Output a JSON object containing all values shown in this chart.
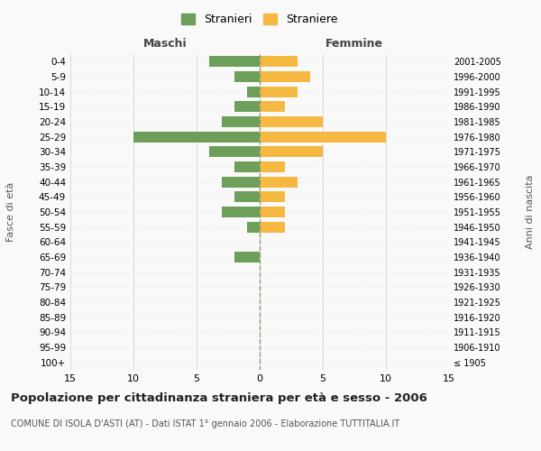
{
  "age_groups": [
    "100+",
    "95-99",
    "90-94",
    "85-89",
    "80-84",
    "75-79",
    "70-74",
    "65-69",
    "60-64",
    "55-59",
    "50-54",
    "45-49",
    "40-44",
    "35-39",
    "30-34",
    "25-29",
    "20-24",
    "15-19",
    "10-14",
    "5-9",
    "0-4"
  ],
  "birth_years": [
    "≤ 1905",
    "1906-1910",
    "1911-1915",
    "1916-1920",
    "1921-1925",
    "1926-1930",
    "1931-1935",
    "1936-1940",
    "1941-1945",
    "1946-1950",
    "1951-1955",
    "1956-1960",
    "1961-1965",
    "1966-1970",
    "1971-1975",
    "1976-1980",
    "1981-1985",
    "1986-1990",
    "1991-1995",
    "1996-2000",
    "2001-2005"
  ],
  "maschi": [
    0,
    0,
    0,
    0,
    0,
    0,
    0,
    2,
    0,
    1,
    3,
    2,
    3,
    2,
    4,
    10,
    3,
    2,
    1,
    2,
    4
  ],
  "femmine": [
    0,
    0,
    0,
    0,
    0,
    0,
    0,
    0,
    0,
    2,
    2,
    2,
    3,
    2,
    5,
    10,
    5,
    2,
    3,
    4,
    3
  ],
  "color_maschi": "#6d9f5b",
  "color_femmine": "#f5b942",
  "xlabel_left": "Maschi",
  "xlabel_right": "Femmine",
  "ylabel_left": "Fasce di età",
  "ylabel_right": "Anni di nascita",
  "xmin": -15,
  "xmax": 15,
  "xticks": [
    -15,
    -10,
    -5,
    0,
    5,
    10,
    15
  ],
  "xtick_labels": [
    "15",
    "10",
    "5",
    "0",
    "5",
    "10",
    "15"
  ],
  "title": "Popolazione per cittadinanza straniera per età e sesso - 2006",
  "subtitle": "COMUNE DI ISOLA D'ASTI (AT) - Dati ISTAT 1° gennaio 2006 - Elaborazione TUTTITALIA.IT",
  "legend_maschi": "Stranieri",
  "legend_femmine": "Straniere",
  "background_color": "#f9f9f9",
  "grid_color": "#cccccc",
  "grid_color_y": "#dddddd",
  "dashed_line_color": "#999966"
}
